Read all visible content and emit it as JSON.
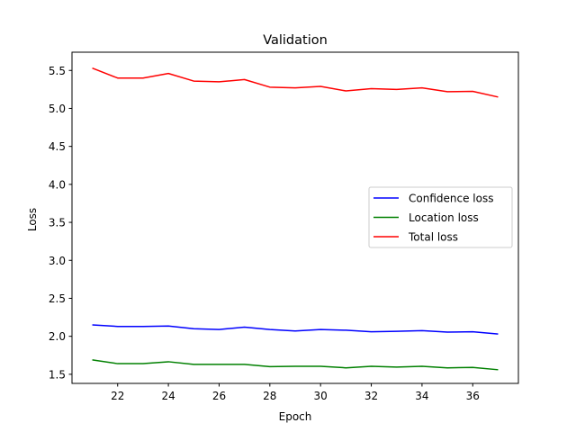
{
  "chart_data": {
    "type": "line",
    "title": "Validation",
    "xlabel": "Epoch",
    "ylabel": "Loss",
    "xlim": [
      20.2,
      37.8
    ],
    "ylim": [
      1.38,
      5.74
    ],
    "xticks": [
      22,
      24,
      26,
      28,
      30,
      32,
      34,
      36
    ],
    "yticks": [
      "1.5",
      "2.0",
      "2.5",
      "3.0",
      "3.5",
      "4.0",
      "4.5",
      "5.0",
      "5.5"
    ],
    "grid": false,
    "legend_position": "center-right",
    "x": [
      21,
      22,
      23,
      24,
      25,
      26,
      27,
      28,
      29,
      30,
      31,
      32,
      33,
      34,
      35,
      36,
      37
    ],
    "series": [
      {
        "name": "Confidence loss",
        "color": "#0000ff",
        "values": [
          2.15,
          2.13,
          2.13,
          2.135,
          2.1,
          2.09,
          2.12,
          2.09,
          2.07,
          2.09,
          2.08,
          2.06,
          2.065,
          2.075,
          2.055,
          2.06,
          2.03
        ]
      },
      {
        "name": "Location loss",
        "color": "#008000",
        "values": [
          1.69,
          1.64,
          1.64,
          1.665,
          1.63,
          1.63,
          1.63,
          1.6,
          1.605,
          1.605,
          1.585,
          1.605,
          1.595,
          1.605,
          1.585,
          1.59,
          1.56
        ]
      },
      {
        "name": "Total loss",
        "color": "#ff0000",
        "values": [
          5.53,
          5.4,
          5.4,
          5.46,
          5.36,
          5.35,
          5.38,
          5.28,
          5.27,
          5.29,
          5.23,
          5.26,
          5.25,
          5.27,
          5.22,
          5.225,
          5.15
        ]
      }
    ]
  }
}
